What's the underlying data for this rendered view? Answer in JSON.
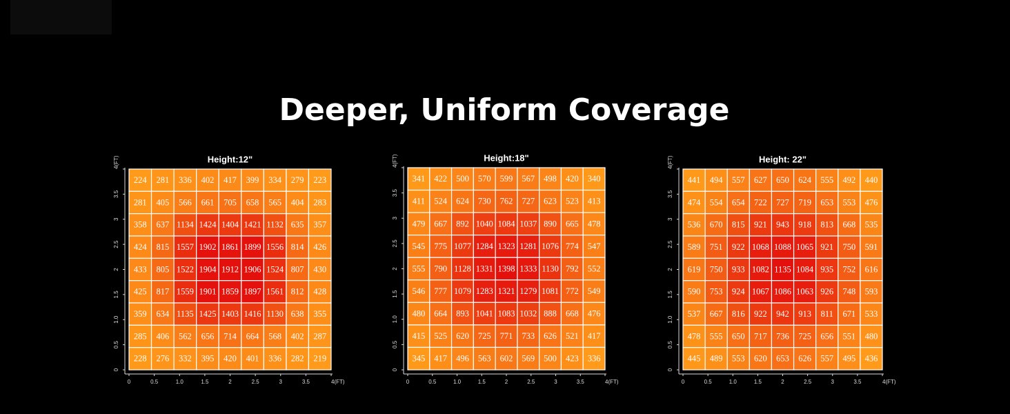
{
  "title": "Deeper, Uniform Coverage",
  "chart_data": [
    {
      "type": "heatmap",
      "title": "Height:12\"",
      "colorscale": [
        "#ff9a1a",
        "#e4100c"
      ],
      "xlim": [
        0,
        4
      ],
      "ylim": [
        0,
        4
      ],
      "xticks": [
        0,
        0.5,
        {
          "value": 1,
          "label": "1.0"
        },
        1.5,
        2,
        2.5,
        3,
        3.5,
        {
          "value": 4,
          "label": "4(FT)"
        }
      ],
      "yticks": [
        0,
        0.5,
        {
          "value": 1,
          "label": "1.0"
        },
        1.5,
        2,
        2.5,
        3,
        3.5,
        {
          "value": 4,
          "label": "4(FT)"
        }
      ],
      "z": [
        [
          224,
          281,
          336,
          402,
          417,
          399,
          334,
          279,
          223
        ],
        [
          281,
          405,
          566,
          661,
          705,
          658,
          565,
          404,
          283
        ],
        [
          358,
          637,
          1134,
          1424,
          1404,
          1421,
          1132,
          635,
          357
        ],
        [
          424,
          815,
          1557,
          1902,
          1861,
          1899,
          1556,
          814,
          426
        ],
        [
          433,
          805,
          1522,
          1904,
          1912,
          1906,
          1524,
          807,
          430
        ],
        [
          425,
          817,
          1559,
          1901,
          1859,
          1897,
          1561,
          812,
          428
        ],
        [
          359,
          634,
          1135,
          1425,
          1403,
          1416,
          1130,
          638,
          355
        ],
        [
          285,
          406,
          562,
          656,
          714,
          664,
          568,
          402,
          287
        ],
        [
          228,
          276,
          332,
          395,
          420,
          401,
          336,
          282,
          219
        ]
      ]
    },
    {
      "type": "heatmap",
      "title": "Height:18\"",
      "colorscale": [
        "#ff9a1a",
        "#e4100c"
      ],
      "xlim": [
        0,
        4
      ],
      "ylim": [
        0,
        4
      ],
      "xticks": [
        0,
        0.5,
        {
          "value": 1,
          "label": "1.0"
        },
        1.5,
        2,
        2.5,
        3,
        3.5,
        {
          "value": 4,
          "label": "4(FT)"
        }
      ],
      "yticks": [
        0,
        0.5,
        {
          "value": 1,
          "label": "1.0"
        },
        1.5,
        2,
        2.5,
        3,
        3.5,
        {
          "value": 4,
          "label": "4(FT)"
        }
      ],
      "z": [
        [
          341,
          422,
          500,
          570,
          599,
          567,
          498,
          420,
          340
        ],
        [
          411,
          524,
          624,
          730,
          762,
          727,
          623,
          523,
          413
        ],
        [
          479,
          667,
          892,
          1040,
          1084,
          1037,
          890,
          665,
          478
        ],
        [
          545,
          775,
          1077,
          1284,
          1323,
          1281,
          1076,
          774,
          547
        ],
        [
          555,
          790,
          1128,
          1331,
          1398,
          1333,
          1130,
          792,
          552
        ],
        [
          546,
          777,
          1079,
          1283,
          1321,
          1279,
          1081,
          772,
          549
        ],
        [
          480,
          664,
          893,
          1041,
          1083,
          1032,
          888,
          668,
          476
        ],
        [
          415,
          525,
          620,
          725,
          771,
          733,
          626,
          521,
          417
        ],
        [
          345,
          417,
          496,
          563,
          602,
          569,
          500,
          423,
          336
        ]
      ]
    },
    {
      "type": "heatmap",
      "title": "Height: 22\"",
      "colorscale": [
        "#ff9a1a",
        "#e4100c"
      ],
      "xlim": [
        0,
        4
      ],
      "ylim": [
        0,
        4
      ],
      "xticks": [
        0,
        0.5,
        {
          "value": 1,
          "label": "1.0"
        },
        1.5,
        2,
        2.5,
        3,
        3.5,
        {
          "value": 4,
          "label": "4(FT)"
        }
      ],
      "yticks": [
        0,
        0.5,
        {
          "value": 1,
          "label": "1.0"
        },
        1.5,
        2,
        2.5,
        3,
        3.5,
        {
          "value": 4,
          "label": "4(FT)"
        }
      ],
      "z": [
        [
          441,
          494,
          557,
          627,
          650,
          624,
          555,
          492,
          440
        ],
        [
          474,
          554,
          654,
          722,
          727,
          719,
          653,
          553,
          476
        ],
        [
          536,
          670,
          815,
          921,
          943,
          918,
          813,
          668,
          535
        ],
        [
          589,
          751,
          922,
          1068,
          1088,
          1065,
          921,
          750,
          591
        ],
        [
          619,
          750,
          933,
          1082,
          1135,
          1084,
          935,
          752,
          616
        ],
        [
          590,
          753,
          924,
          1067,
          1086,
          1063,
          926,
          748,
          593
        ],
        [
          537,
          667,
          816,
          922,
          942,
          913,
          811,
          671,
          533
        ],
        [
          478,
          555,
          650,
          717,
          736,
          725,
          656,
          551,
          480
        ],
        [
          445,
          489,
          553,
          620,
          653,
          626,
          557,
          495,
          436
        ]
      ]
    }
  ]
}
